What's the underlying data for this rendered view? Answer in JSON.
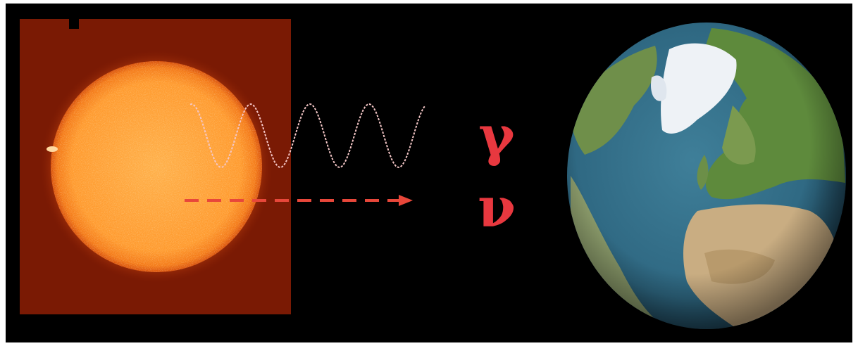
{
  "labels": {
    "photon": "γ",
    "neutrino": "ν"
  }
}
